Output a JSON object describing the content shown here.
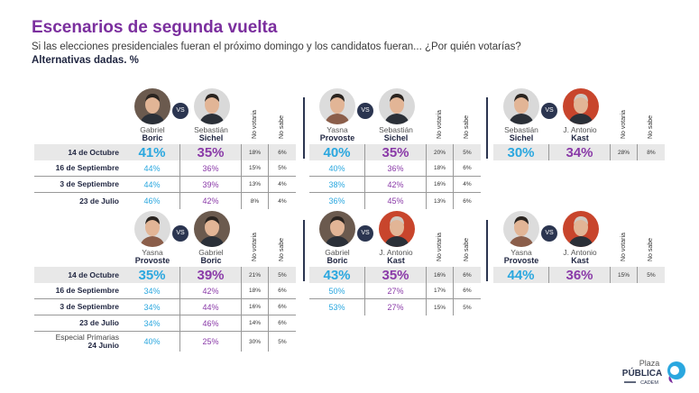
{
  "header": {
    "title": "Escenarios de segunda vuelta",
    "question": "Si las elecciones presidenciales fueran el próximo domingo y los candidatos fueran... ¿Por quién votarías?",
    "note": "Alternativas dadas. %"
  },
  "vs_label": "VS",
  "col_no_votaria": "No votaria",
  "col_no_sabe": "No sabe",
  "colors": {
    "candidate_a": "#2aa7df",
    "candidate_b": "#8a3aa8",
    "title": "#7b2f9e"
  },
  "logo": {
    "line1": "Plaza",
    "line2": "PÚBLICA",
    "line3": "CADEM"
  },
  "chart_data": {
    "type": "table",
    "title": "Escenarios de segunda vuelta",
    "panels": [
      {
        "a_first": "Gabriel",
        "a_last": "Boric",
        "b_first": "Sebastián",
        "b_last": "Sichel",
        "rows": [
          {
            "date": "14 de Octubre",
            "a": "41%",
            "b": "35%",
            "nv": "18%",
            "ns": "6%"
          },
          {
            "date": "16 de Septiembre",
            "a": "44%",
            "b": "36%",
            "nv": "15%",
            "ns": "5%"
          },
          {
            "date": "3 de Septiembre",
            "a": "44%",
            "b": "39%",
            "nv": "13%",
            "ns": "4%"
          },
          {
            "date": "23 de Julio",
            "a": "46%",
            "b": "42%",
            "nv": "8%",
            "ns": "4%"
          }
        ]
      },
      {
        "a_first": "Yasna",
        "a_last": "Provoste",
        "b_first": "Sebastián",
        "b_last": "Sichel",
        "rows": [
          {
            "a": "40%",
            "b": "35%",
            "nv": "20%",
            "ns": "5%"
          },
          {
            "a": "40%",
            "b": "36%",
            "nv": "18%",
            "ns": "6%"
          },
          {
            "a": "38%",
            "b": "42%",
            "nv": "16%",
            "ns": "4%"
          },
          {
            "a": "36%",
            "b": "45%",
            "nv": "13%",
            "ns": "6%"
          }
        ]
      },
      {
        "a_first": "Sebastián",
        "a_last": "Sichel",
        "b_first": "J. Antonio",
        "b_last": "Kast",
        "rows": [
          {
            "a": "30%",
            "b": "34%",
            "nv": "28%",
            "ns": "8%"
          }
        ]
      },
      {
        "a_first": "Yasna",
        "a_last": "Provoste",
        "b_first": "Gabriel",
        "b_last": "Boric",
        "rows": [
          {
            "date": "14 de Octubre",
            "a": "35%",
            "b": "39%",
            "nv": "21%",
            "ns": "5%"
          },
          {
            "date": "16 de Septiembre",
            "a": "34%",
            "b": "42%",
            "nv": "18%",
            "ns": "6%"
          },
          {
            "date": "3 de Septiembre",
            "a": "34%",
            "b": "44%",
            "nv": "16%",
            "ns": "6%"
          },
          {
            "date": "23 de Julio",
            "a": "34%",
            "b": "46%",
            "nv": "14%",
            "ns": "6%"
          },
          {
            "date_pre": "Especial Primarias",
            "date": "24 Junio",
            "a": "40%",
            "b": "25%",
            "nv": "30%",
            "ns": "5%"
          }
        ]
      },
      {
        "a_first": "Gabriel",
        "a_last": "Boric",
        "b_first": "J. Antonio",
        "b_last": "Kast",
        "rows": [
          {
            "a": "43%",
            "b": "35%",
            "nv": "16%",
            "ns": "6%"
          },
          {
            "a": "50%",
            "b": "27%",
            "nv": "17%",
            "ns": "6%"
          },
          {
            "a": "53%",
            "b": "27%",
            "nv": "15%",
            "ns": "5%"
          }
        ]
      },
      {
        "a_first": "Yasna",
        "a_last": "Provoste",
        "b_first": "J. Antonio",
        "b_last": "Kast",
        "rows": [
          {
            "a": "44%",
            "b": "36%",
            "nv": "15%",
            "ns": "5%"
          }
        ]
      }
    ]
  }
}
